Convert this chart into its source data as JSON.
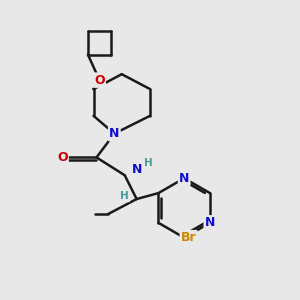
{
  "bg_color": "#e8e8e8",
  "bond_color": "#1a1a1a",
  "bond_width": 1.8,
  "atom_colors": {
    "N": "#1010cc",
    "O": "#cc0000",
    "Br": "#cc8800",
    "H": "#4a9a9a",
    "C": "#1a1a1a"
  },
  "font_size_atom": 9,
  "font_size_label": 8
}
